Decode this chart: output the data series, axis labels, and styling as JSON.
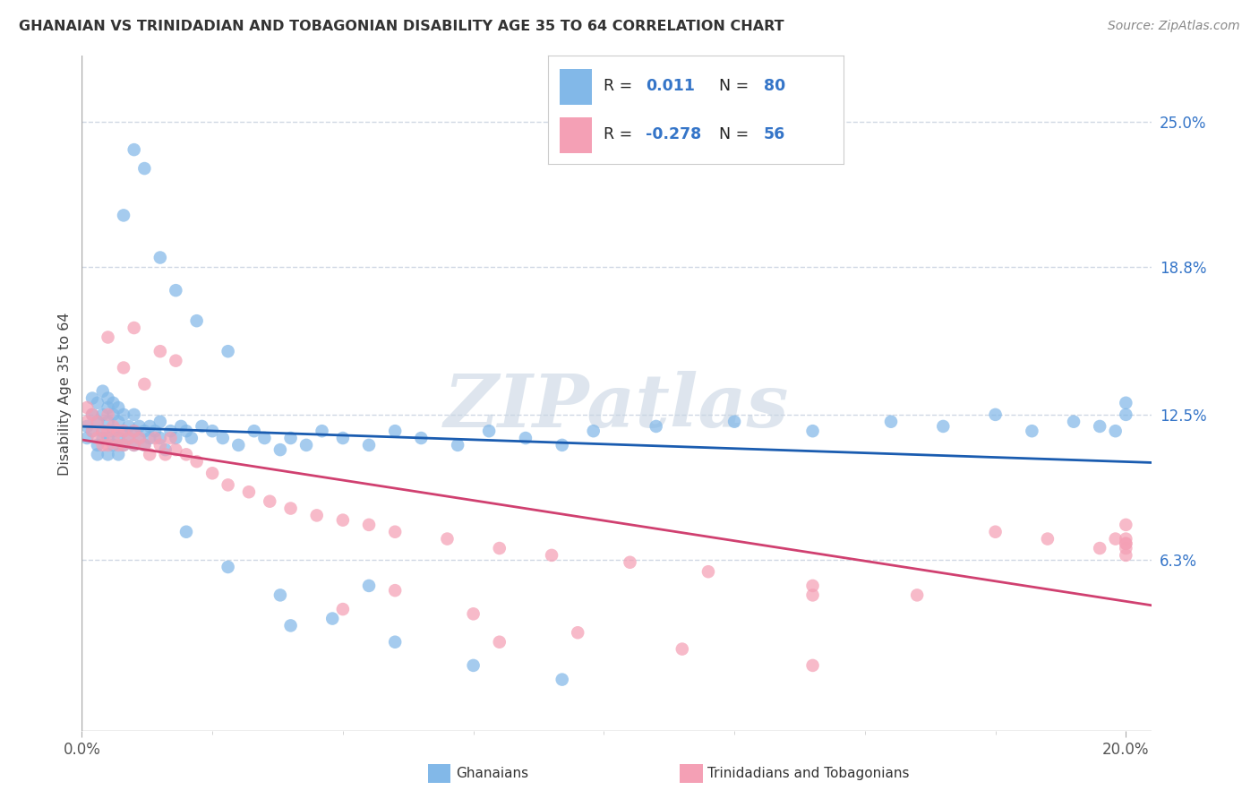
{
  "title": "GHANAIAN VS TRINIDADIAN AND TOBAGONIAN DISABILITY AGE 35 TO 64 CORRELATION CHART",
  "source": "Source: ZipAtlas.com",
  "ylabel": "Disability Age 35 to 64",
  "xlim": [
    0.0,
    0.205
  ],
  "ylim": [
    -0.01,
    0.278
  ],
  "xtick_positions": [
    0.0,
    0.2
  ],
  "xtick_labels": [
    "0.0%",
    "20.0%"
  ],
  "ytick_right_values": [
    0.063,
    0.125,
    0.188,
    0.25
  ],
  "ytick_right_labels": [
    "6.3%",
    "12.5%",
    "18.8%",
    "25.0%"
  ],
  "r_ghanaian": 0.011,
  "n_ghanaian": 80,
  "r_trinidadian": -0.278,
  "n_trinidadian": 56,
  "color_ghanaian": "#82B8E8",
  "color_trinidadian": "#F4A0B5",
  "color_line_ghanaian": "#1A5CB0",
  "color_line_trinidadian": "#D04070",
  "watermark": "ZIPatlas",
  "watermark_color": "#C8D5E3",
  "background_color": "#FFFFFF",
  "grid_color": "#D0D8E4",
  "scatter_alpha": 0.72,
  "scatter_size": 110,
  "gh_x": [
    0.001,
    0.001,
    0.002,
    0.002,
    0.002,
    0.003,
    0.003,
    0.003,
    0.003,
    0.004,
    0.004,
    0.004,
    0.004,
    0.005,
    0.005,
    0.005,
    0.005,
    0.005,
    0.006,
    0.006,
    0.006,
    0.006,
    0.007,
    0.007,
    0.007,
    0.007,
    0.008,
    0.008,
    0.008,
    0.009,
    0.009,
    0.01,
    0.01,
    0.01,
    0.011,
    0.011,
    0.012,
    0.012,
    0.013,
    0.013,
    0.014,
    0.015,
    0.015,
    0.016,
    0.017,
    0.018,
    0.019,
    0.02,
    0.021,
    0.023,
    0.025,
    0.027,
    0.03,
    0.033,
    0.035,
    0.038,
    0.04,
    0.043,
    0.046,
    0.05,
    0.055,
    0.06,
    0.065,
    0.072,
    0.078,
    0.085,
    0.092,
    0.098,
    0.11,
    0.125,
    0.14,
    0.155,
    0.165,
    0.175,
    0.182,
    0.19,
    0.195,
    0.198,
    0.2,
    0.2
  ],
  "gh_y": [
    0.12,
    0.115,
    0.125,
    0.132,
    0.118,
    0.112,
    0.108,
    0.122,
    0.13,
    0.118,
    0.115,
    0.125,
    0.135,
    0.122,
    0.128,
    0.115,
    0.108,
    0.132,
    0.118,
    0.125,
    0.112,
    0.13,
    0.115,
    0.122,
    0.108,
    0.128,
    0.118,
    0.125,
    0.112,
    0.12,
    0.115,
    0.118,
    0.125,
    0.112,
    0.12,
    0.115,
    0.118,
    0.112,
    0.12,
    0.115,
    0.118,
    0.115,
    0.122,
    0.11,
    0.118,
    0.115,
    0.12,
    0.118,
    0.115,
    0.12,
    0.118,
    0.115,
    0.112,
    0.118,
    0.115,
    0.11,
    0.115,
    0.112,
    0.118,
    0.115,
    0.112,
    0.118,
    0.115,
    0.112,
    0.118,
    0.115,
    0.112,
    0.118,
    0.12,
    0.122,
    0.118,
    0.122,
    0.12,
    0.125,
    0.118,
    0.122,
    0.12,
    0.118,
    0.125,
    0.13
  ],
  "gh_y_high": [
    0.238,
    0.192,
    0.178,
    0.165,
    0.152,
    0.21,
    0.23
  ],
  "gh_x_high": [
    0.01,
    0.015,
    0.018,
    0.022,
    0.028,
    0.008,
    0.012
  ],
  "gh_y_low": [
    0.075,
    0.06,
    0.048,
    0.038,
    0.028,
    0.018,
    0.012,
    0.035,
    0.052
  ],
  "gh_x_low": [
    0.02,
    0.028,
    0.038,
    0.048,
    0.06,
    0.075,
    0.092,
    0.04,
    0.055
  ],
  "tr_x": [
    0.001,
    0.001,
    0.002,
    0.002,
    0.003,
    0.003,
    0.004,
    0.004,
    0.005,
    0.005,
    0.005,
    0.006,
    0.006,
    0.007,
    0.007,
    0.008,
    0.008,
    0.009,
    0.01,
    0.01,
    0.011,
    0.012,
    0.013,
    0.014,
    0.015,
    0.016,
    0.017,
    0.018,
    0.02,
    0.022,
    0.025,
    0.028,
    0.032,
    0.036,
    0.04,
    0.045,
    0.05,
    0.055,
    0.06,
    0.07,
    0.08,
    0.09,
    0.105,
    0.12,
    0.14,
    0.16,
    0.175,
    0.185,
    0.195,
    0.198,
    0.2,
    0.2,
    0.2,
    0.2,
    0.2,
    0.2
  ],
  "tr_y": [
    0.128,
    0.122,
    0.118,
    0.125,
    0.115,
    0.122,
    0.118,
    0.112,
    0.125,
    0.118,
    0.112,
    0.12,
    0.115,
    0.118,
    0.112,
    0.118,
    0.112,
    0.115,
    0.118,
    0.112,
    0.115,
    0.112,
    0.108,
    0.115,
    0.112,
    0.108,
    0.115,
    0.11,
    0.108,
    0.105,
    0.1,
    0.095,
    0.092,
    0.088,
    0.085,
    0.082,
    0.08,
    0.078,
    0.075,
    0.072,
    0.068,
    0.065,
    0.062,
    0.058,
    0.052,
    0.048,
    0.075,
    0.072,
    0.068,
    0.072,
    0.078,
    0.07,
    0.065,
    0.068,
    0.072,
    0.07
  ],
  "tr_y_high": [
    0.158,
    0.145,
    0.138,
    0.152,
    0.162,
    0.148
  ],
  "tr_x_high": [
    0.005,
    0.008,
    0.012,
    0.015,
    0.01,
    0.018
  ],
  "tr_y_low": [
    0.05,
    0.04,
    0.032,
    0.025,
    0.018,
    0.042,
    0.028
  ],
  "tr_x_low": [
    0.06,
    0.075,
    0.095,
    0.115,
    0.14,
    0.05,
    0.08
  ],
  "tr_outlier_x": [
    0.14
  ],
  "tr_outlier_y": [
    0.048
  ]
}
